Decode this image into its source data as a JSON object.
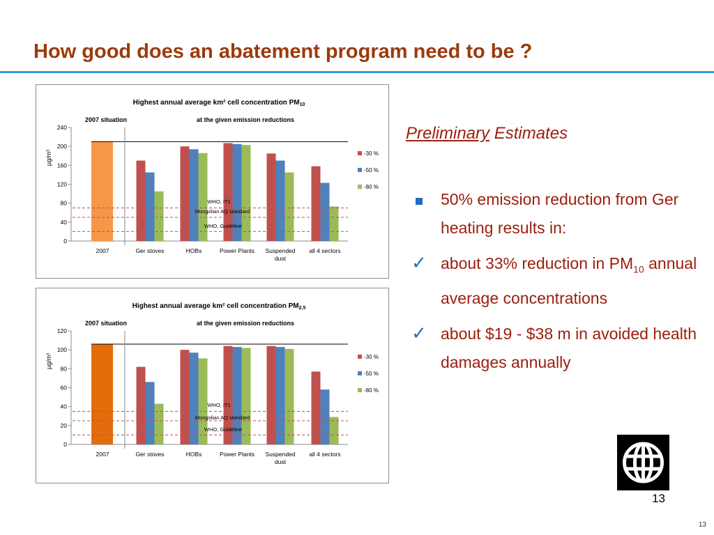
{
  "slide": {
    "title": "How good does an abatement program need to be ?",
    "heading_underlined": "Preliminary",
    "heading_rest": " Estimates",
    "bullets": [
      {
        "marker": "square",
        "parts": [
          {
            "t": "50% emission reduction from Ger heating results in:"
          }
        ]
      },
      {
        "marker": "check",
        "parts": [
          {
            "t": "about 33% reduction in PM"
          },
          {
            "t": "10",
            "sub": true
          },
          {
            "t": " annual average concentrations"
          }
        ]
      },
      {
        "marker": "check",
        "parts": [
          {
            "t": "about $19 - $38 m in avoided health damages annually"
          }
        ]
      }
    ],
    "page_number": "13",
    "page_number_small": "13"
  },
  "colors": {
    "title": "#9b3a0c",
    "rule": "#3a9ad9",
    "text": "#9b1e0c",
    "bullet_marker": "#1f6fbf",
    "series_2007_pm10": "#f79646",
    "series_2007_pm25": "#e46c0a",
    "s30": "#c0504d",
    "s50": "#4f81bd",
    "s80": "#9bbb59",
    "reference_line": "#c0504d"
  },
  "chart_data": [
    {
      "type": "bar",
      "title": "Highest annual average  km² cell concentration  PM",
      "title_sub": "10",
      "left_label": "2007 situation",
      "right_label": "at the given emission reductions",
      "ylabel": "µg/m³",
      "ylim": [
        0,
        240
      ],
      "yticks": [
        0,
        40,
        80,
        120,
        160,
        200,
        240
      ],
      "baseline_2007": {
        "category": "2007",
        "value": 210
      },
      "categories": [
        "Ger stoves",
        "HOBs",
        "Power Plants",
        "Suspended dust",
        "all 4 sectors"
      ],
      "series": [
        {
          "name": "-30 %",
          "values": [
            170,
            200,
            207,
            185,
            158
          ]
        },
        {
          "name": "-50 %",
          "values": [
            145,
            194,
            205,
            170,
            123
          ]
        },
        {
          "name": "-80 %",
          "values": [
            105,
            186,
            203,
            145,
            73
          ]
        }
      ],
      "reference_lines": [
        {
          "label": "WHO, IT1",
          "value": 70
        },
        {
          "label": "Mongolian AQ standard",
          "value": 50
        },
        {
          "label": "WHO, Guideline",
          "value": 20
        }
      ],
      "legend_position": "right",
      "grid": false
    },
    {
      "type": "bar",
      "title": "Highest annual average km² cell concentration PM",
      "title_sub": "2.5",
      "left_label": "2007 situation",
      "right_label": "at the given emission reductions",
      "ylabel": "µg/m³",
      "ylim": [
        0,
        120
      ],
      "yticks": [
        0,
        20,
        40,
        60,
        80,
        100,
        120
      ],
      "baseline_2007": {
        "category": "2007",
        "value": 106
      },
      "categories": [
        "Ger stoves",
        "HOBs",
        "Power Plants",
        "Suspended dust",
        "all 4 sectors"
      ],
      "series": [
        {
          "name": "-30 %",
          "values": [
            82,
            100,
            104,
            104,
            77
          ]
        },
        {
          "name": "-50 %",
          "values": [
            66,
            97,
            103,
            103,
            58
          ]
        },
        {
          "name": "-80 %",
          "values": [
            43,
            91,
            102,
            101,
            29
          ]
        }
      ],
      "reference_lines": [
        {
          "label": "WHO, IT1",
          "value": 35
        },
        {
          "label": "Mongolian AQ standard",
          "value": 25
        },
        {
          "label": "WHO, Guideline",
          "value": 10
        }
      ],
      "legend_position": "right",
      "grid": false
    }
  ]
}
